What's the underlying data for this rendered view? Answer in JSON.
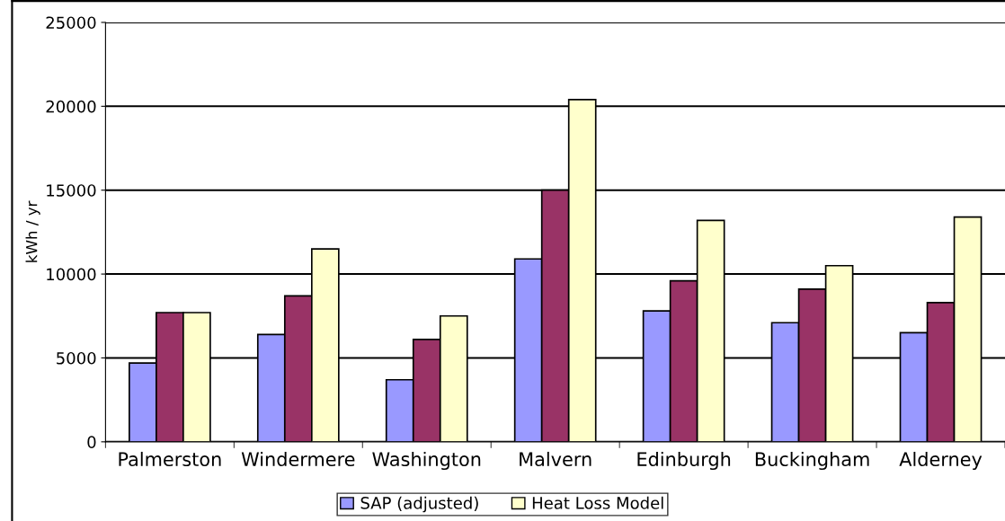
{
  "chart_data": {
    "type": "bar",
    "ylabel": "kWh / yr",
    "categories": [
      "Palmerston",
      "Windermere",
      "Washington",
      "Malvern",
      "Edinburgh",
      "Buckingham",
      "Alderney"
    ],
    "series": [
      {
        "name": "SAP (adjusted)",
        "color": "#9999ff",
        "values": [
          4700,
          6400,
          3700,
          10900,
          7800,
          7100,
          6500
        ]
      },
      {
        "color": "#993366",
        "values": [
          7700,
          8700,
          6100,
          15000,
          9600,
          9100,
          8300
        ]
      },
      {
        "name": "Heat Loss Model",
        "color": "#ffffcc",
        "values": [
          7700,
          11500,
          7500,
          20400,
          13200,
          10500,
          13400
        ]
      }
    ],
    "ylim": [
      0,
      25000
    ],
    "yticks": [
      0,
      5000,
      10000,
      15000,
      20000,
      25000
    ],
    "grid": "y",
    "legend": "bottom"
  }
}
